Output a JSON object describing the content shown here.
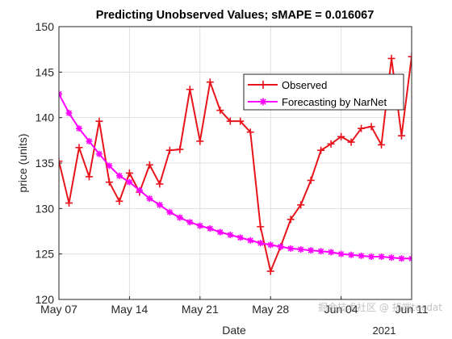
{
  "chart_data": {
    "type": "line",
    "title": "Predicting Unobserved Values; sMAPE = 0.016067",
    "xlabel": "Date",
    "ylabel": "price (units)",
    "x_tick_labels": [
      "May 07",
      "May 14",
      "May 21",
      "May 28",
      "Jun 04",
      "Jun 11"
    ],
    "x_ticks": [
      "2021-05-07",
      "2021-05-14",
      "2021-05-21",
      "2021-05-28",
      "2021-06-04",
      "2021-06-11"
    ],
    "x_secondary_label": "2021",
    "xlim": [
      "2021-05-07",
      "2021-06-11"
    ],
    "ylim": [
      120,
      150
    ],
    "y_ticks": [
      120,
      125,
      130,
      135,
      140,
      145,
      150
    ],
    "grid": true,
    "legend_placement": "upper-right",
    "series": [
      {
        "name": "Observed",
        "color": "#e8141c",
        "marker": "plus",
        "x": [
          "2021-05-07",
          "2021-05-08",
          "2021-05-09",
          "2021-05-10",
          "2021-05-11",
          "2021-05-12",
          "2021-05-13",
          "2021-05-14",
          "2021-05-15",
          "2021-05-16",
          "2021-05-17",
          "2021-05-18",
          "2021-05-19",
          "2021-05-20",
          "2021-05-21",
          "2021-05-22",
          "2021-05-23",
          "2021-05-24",
          "2021-05-25",
          "2021-05-26",
          "2021-05-27",
          "2021-05-28",
          "2021-05-29",
          "2021-05-30",
          "2021-05-31",
          "2021-06-01",
          "2021-06-02",
          "2021-06-03",
          "2021-06-04",
          "2021-06-05",
          "2021-06-06",
          "2021-06-07",
          "2021-06-08",
          "2021-06-09",
          "2021-06-10",
          "2021-06-11"
        ],
        "values": [
          135.2,
          130.6,
          136.7,
          133.5,
          139.6,
          132.9,
          130.8,
          133.9,
          131.8,
          134.8,
          132.7,
          136.4,
          136.5,
          143.1,
          137.4,
          143.9,
          140.8,
          139.6,
          139.6,
          138.4,
          128.0,
          123.1,
          125.8,
          128.8,
          130.4,
          133.1,
          136.4,
          137.1,
          137.9,
          137.3,
          138.8,
          139.0,
          137.0,
          146.5,
          138.0,
          146.7
        ]
      },
      {
        "name": "Forecasting by NarNet",
        "color": "#ff00ff",
        "marker": "asterisk",
        "x": [
          "2021-05-07",
          "2021-05-08",
          "2021-05-09",
          "2021-05-10",
          "2021-05-11",
          "2021-05-12",
          "2021-05-13",
          "2021-05-14",
          "2021-05-15",
          "2021-05-16",
          "2021-05-17",
          "2021-05-18",
          "2021-05-19",
          "2021-05-20",
          "2021-05-21",
          "2021-05-22",
          "2021-05-23",
          "2021-05-24",
          "2021-05-25",
          "2021-05-26",
          "2021-05-27",
          "2021-05-28",
          "2021-05-29",
          "2021-05-30",
          "2021-05-31",
          "2021-06-01",
          "2021-06-02",
          "2021-06-03",
          "2021-06-04",
          "2021-06-05",
          "2021-06-06",
          "2021-06-07",
          "2021-06-08",
          "2021-06-09",
          "2021-06-10",
          "2021-06-11"
        ],
        "values": [
          142.6,
          140.5,
          138.8,
          137.4,
          136.0,
          134.7,
          133.6,
          132.9,
          132.0,
          131.1,
          130.4,
          129.6,
          129.0,
          128.5,
          128.1,
          127.8,
          127.4,
          127.1,
          126.8,
          126.5,
          126.2,
          126.0,
          125.8,
          125.6,
          125.5,
          125.4,
          125.3,
          125.2,
          125.0,
          124.9,
          124.8,
          124.7,
          124.7,
          124.6,
          124.5,
          124.5
        ]
      }
    ]
  },
  "watermark": "掘金技术社区 @ 拓端tecdat"
}
